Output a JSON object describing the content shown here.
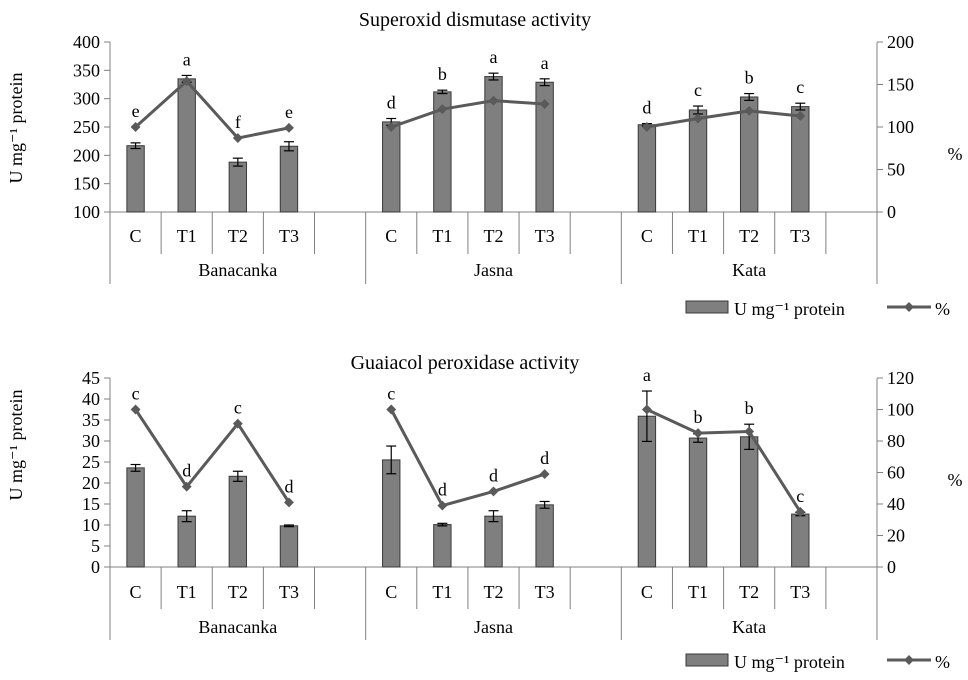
{
  "colors": {
    "bar": "#7f7f7f",
    "bar_edge": "#3a3a3a",
    "line": "#5a5a5a",
    "axis": "#808080"
  },
  "chart_data": [
    {
      "type": "bar",
      "title": "Superoxid dismutase activity",
      "ylabel": "U mg⁻¹ protein",
      "y2label": "%",
      "ylim": [
        100,
        400
      ],
      "yticks": [
        "100",
        "150",
        "200",
        "250",
        "300",
        "350",
        "400"
      ],
      "y2lim": [
        0,
        200
      ],
      "y2ticks": [
        "0",
        "50",
        "100",
        "150",
        "200"
      ],
      "grid": false,
      "legend_position": "bottom-right",
      "legend": {
        "bar": "U mg⁻¹ protein",
        "line": "%"
      },
      "groups": [
        {
          "name": "Banacanka",
          "categories": [
            "C",
            "T1",
            "T2",
            "T3"
          ],
          "values": [
            217,
            335,
            188,
            216
          ],
          "errors": [
            5,
            6,
            7,
            8
          ],
          "percent": [
            100,
            154,
            87,
            99
          ],
          "letters": [
            "e",
            "a",
            "f",
            "e"
          ]
        },
        {
          "name": "Jasna",
          "categories": [
            "C",
            "T1",
            "T2",
            "T3"
          ],
          "values": [
            259,
            312,
            339,
            329
          ],
          "errors": [
            6,
            3,
            6,
            6
          ],
          "percent": [
            100,
            121,
            131,
            127
          ],
          "letters": [
            "d",
            "b",
            "a",
            "a"
          ]
        },
        {
          "name": "Kata",
          "categories": [
            "C",
            "T1",
            "T2",
            "T3"
          ],
          "values": [
            254,
            280,
            303,
            286
          ],
          "errors": [
            2,
            7,
            6,
            6
          ],
          "percent": [
            100,
            110,
            119,
            113
          ],
          "letters": [
            "d",
            "c",
            "b",
            "c"
          ]
        }
      ]
    },
    {
      "type": "bar",
      "title": "Guaiacol peroxidase activity",
      "ylabel": "U mg⁻¹ protein",
      "y2label": "%",
      "ylim": [
        0,
        45
      ],
      "yticks": [
        "0",
        "5",
        "10",
        "15",
        "20",
        "25",
        "30",
        "35",
        "40",
        "45"
      ],
      "y2lim": [
        0,
        120
      ],
      "y2ticks": [
        "0",
        "20",
        "40",
        "60",
        "80",
        "100",
        "120"
      ],
      "grid": false,
      "legend_position": "bottom-right",
      "legend": {
        "bar": "U mg⁻¹ protein",
        "line": "%"
      },
      "groups": [
        {
          "name": "Banacanka",
          "categories": [
            "C",
            "T1",
            "T2",
            "T3"
          ],
          "values": [
            23.6,
            12.1,
            21.6,
            9.8
          ],
          "errors": [
            0.8,
            1.3,
            1.2,
            0.2
          ],
          "percent": [
            100,
            51,
            91,
            41
          ],
          "letters": [
            "c",
            "d",
            "c",
            "d"
          ]
        },
        {
          "name": "Jasna",
          "categories": [
            "C",
            "T1",
            "T2",
            "T3"
          ],
          "values": [
            25.5,
            10.1,
            12.1,
            14.8
          ],
          "errors": [
            3.3,
            0.3,
            1.3,
            0.8
          ],
          "percent": [
            100,
            39,
            48,
            59
          ],
          "letters": [
            "c",
            "d",
            "d",
            "d"
          ]
        },
        {
          "name": "Kata",
          "categories": [
            "C",
            "T1",
            "T2",
            "T3"
          ],
          "values": [
            35.9,
            30.7,
            31.0,
            12.6
          ],
          "errors": [
            6.0,
            1.0,
            3.0,
            0.4
          ],
          "percent": [
            100,
            85,
            86,
            35
          ],
          "letters": [
            "a",
            "b",
            "b",
            "c"
          ]
        }
      ]
    }
  ]
}
